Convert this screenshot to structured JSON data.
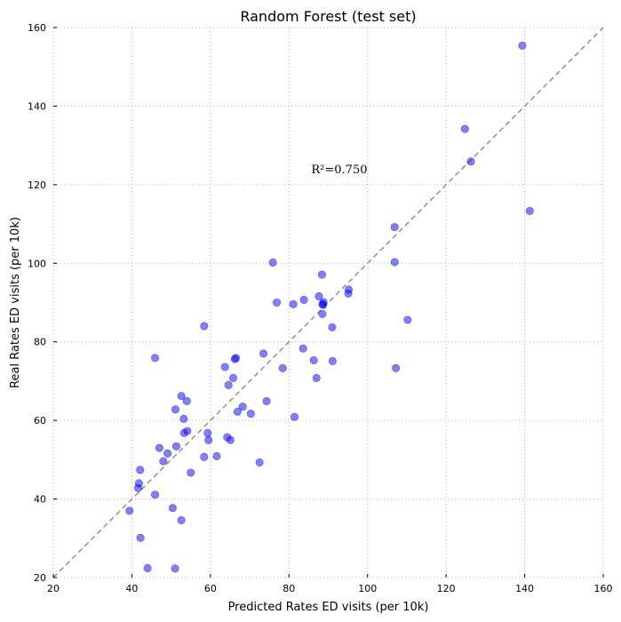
{
  "chart_data": {
    "type": "scatter",
    "title": "Random Forest (test set)",
    "xlabel": "Predicted Rates ED visits (per 10k)",
    "ylabel": "Real Rates ED visits (per 10k)",
    "xlim": [
      20,
      160
    ],
    "ylim": [
      20,
      160
    ],
    "xticks": [
      "20",
      "40",
      "60",
      "80",
      "100",
      "120",
      "140",
      "160"
    ],
    "yticks": [
      "20",
      "40",
      "60",
      "80",
      "100",
      "120",
      "140",
      "160"
    ],
    "grid": true,
    "annotation": {
      "label": "R²=0.750",
      "x": 85,
      "y": 124
    },
    "reference_line": {
      "type": "identity",
      "style": "dashed",
      "color": "#808080"
    },
    "point_color": "#0000ff",
    "points": [
      [
        139.4,
        155.4
      ],
      [
        124.8,
        134.2
      ],
      [
        126.3,
        125.9
      ],
      [
        141.3,
        113.3
      ],
      [
        106.9,
        109.2
      ],
      [
        106.9,
        100.3
      ],
      [
        75.9,
        100.2
      ],
      [
        88.4,
        97.1
      ],
      [
        95.2,
        93.3
      ],
      [
        95.1,
        92.3
      ],
      [
        87.6,
        91.6
      ],
      [
        83.8,
        90.7
      ],
      [
        88.8,
        90.1
      ],
      [
        88.5,
        89.6
      ],
      [
        88.7,
        89.4
      ],
      [
        76.9,
        90.0
      ],
      [
        81.1,
        89.6
      ],
      [
        88.5,
        87.1
      ],
      [
        110.2,
        85.6
      ],
      [
        91.0,
        83.7
      ],
      [
        58.4,
        84.0
      ],
      [
        83.6,
        78.3
      ],
      [
        73.5,
        77.0
      ],
      [
        45.9,
        75.9
      ],
      [
        66.2,
        75.6
      ],
      [
        66.5,
        75.9
      ],
      [
        86.3,
        75.3
      ],
      [
        91.1,
        75.1
      ],
      [
        63.7,
        73.6
      ],
      [
        78.4,
        73.3
      ],
      [
        107.2,
        73.3
      ],
      [
        65.8,
        70.8
      ],
      [
        87.0,
        70.8
      ],
      [
        64.6,
        69.0
      ],
      [
        52.6,
        66.2
      ],
      [
        54.0,
        64.9
      ],
      [
        74.3,
        64.9
      ],
      [
        68.2,
        63.5
      ],
      [
        51.1,
        62.8
      ],
      [
        66.9,
        62.2
      ],
      [
        70.3,
        61.7
      ],
      [
        81.4,
        60.9
      ],
      [
        53.2,
        60.4
      ],
      [
        53.3,
        56.8
      ],
      [
        59.3,
        56.8
      ],
      [
        54.1,
        57.3
      ],
      [
        64.3,
        55.7
      ],
      [
        65.1,
        55.0
      ],
      [
        59.5,
        55.0
      ],
      [
        47.0,
        53.0
      ],
      [
        51.3,
        53.4
      ],
      [
        49.1,
        51.6
      ],
      [
        58.4,
        50.7
      ],
      [
        61.6,
        50.9
      ],
      [
        48.0,
        49.6
      ],
      [
        72.5,
        49.3
      ],
      [
        55.0,
        46.7
      ],
      [
        42.1,
        47.4
      ],
      [
        41.8,
        44.0
      ],
      [
        41.6,
        42.8
      ],
      [
        45.9,
        41.1
      ],
      [
        50.4,
        37.7
      ],
      [
        39.4,
        37.0
      ],
      [
        52.6,
        34.6
      ],
      [
        42.2,
        30.1
      ],
      [
        44.0,
        22.4
      ],
      [
        51.0,
        22.3
      ]
    ]
  }
}
